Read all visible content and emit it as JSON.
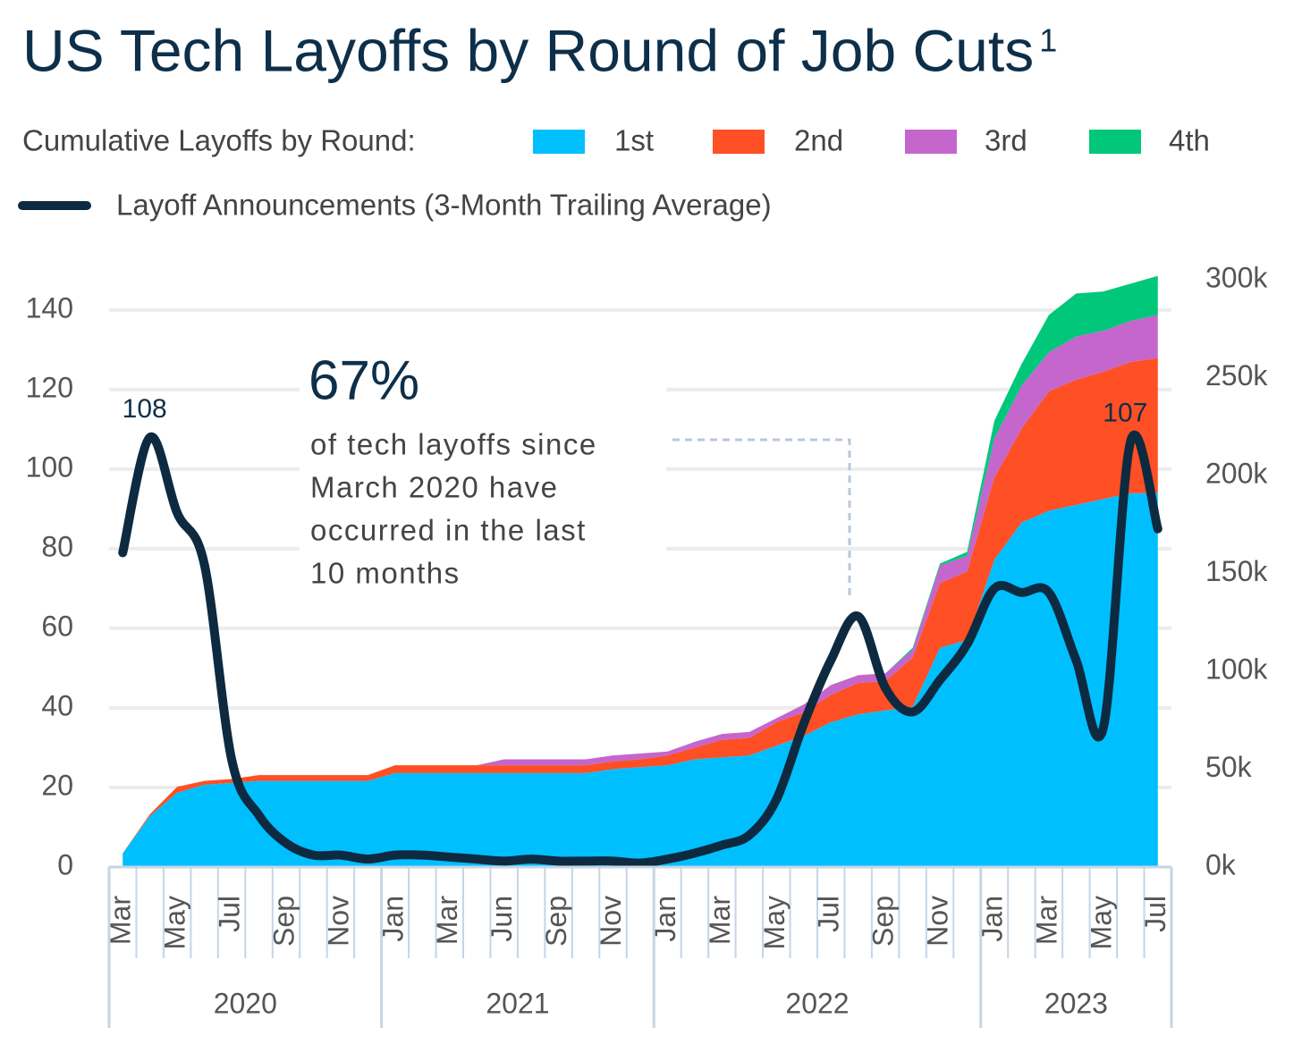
{
  "chart_data": {
    "type": "area",
    "title": "US Tech Layoffs by Round of Job Cuts",
    "title_footnote": "1",
    "legend_label": "Cumulative Layoffs by Round:",
    "annotation": {
      "headline": "67%",
      "lines": [
        "of tech layoffs since",
        "March 2020 have",
        "occurred in the last",
        "10 months"
      ]
    },
    "categories": [
      "Mar",
      null,
      "May",
      null,
      "Jul",
      null,
      "Sep",
      null,
      "Nov",
      null,
      "Jan",
      null,
      "Mar",
      null,
      "Jun",
      null,
      "Sep",
      null,
      "Nov",
      null,
      "Jan",
      null,
      "Mar",
      null,
      "May",
      null,
      "Jul",
      null,
      "Sep",
      null,
      "Nov",
      null,
      "Jan",
      null,
      "Mar",
      null,
      "May",
      null,
      "Jul"
    ],
    "category_groups": [
      {
        "label": "2020",
        "span": 10
      },
      {
        "label": "2021",
        "span": 10
      },
      {
        "label": "2022",
        "span": 12
      },
      {
        "label": "2023",
        "span": 7
      }
    ],
    "series": [
      {
        "name": "1st",
        "color": "#00bfff",
        "axis": "y2",
        "values": [
          7,
          26,
          38,
          42,
          43,
          44,
          44,
          44,
          44,
          44,
          48,
          48,
          48,
          48,
          48,
          48,
          48,
          48,
          50,
          51,
          52,
          55,
          56,
          57,
          62,
          67,
          74,
          78,
          80,
          82,
          112,
          116,
          157,
          176,
          182,
          185,
          188,
          191,
          191
        ]
      },
      {
        "name": "2nd",
        "color": "#ff4f24",
        "axis": "y2",
        "values": [
          0,
          1,
          3,
          2,
          2,
          3,
          3,
          3,
          3,
          3,
          4,
          4,
          4,
          4,
          4,
          4,
          4,
          4,
          4,
          4,
          5,
          6,
          9,
          9,
          12,
          12,
          14,
          16,
          15,
          25,
          33,
          35,
          42,
          48,
          61,
          64,
          65,
          67,
          69
        ]
      },
      {
        "name": "3rd",
        "color": "#c466cc",
        "axis": "y2",
        "values": [
          0,
          0,
          0,
          0,
          0,
          0,
          0,
          0,
          0,
          0,
          0,
          0,
          0,
          0,
          3,
          3,
          3,
          3,
          3,
          3,
          2,
          3,
          3,
          3,
          2,
          4,
          5,
          4,
          4,
          4,
          9,
          8,
          20,
          22,
          20,
          22,
          21,
          21,
          22
        ]
      },
      {
        "name": "4th",
        "color": "#00c77a",
        "axis": "y2",
        "values": [
          0,
          0,
          0,
          0,
          0,
          0,
          0,
          0,
          0,
          0,
          0,
          0,
          0,
          0,
          0,
          0,
          0,
          0,
          0,
          0,
          0,
          0,
          0,
          0,
          0,
          0,
          0,
          0,
          0,
          1,
          1,
          2,
          9,
          11,
          19,
          22,
          20,
          19,
          20
        ]
      },
      {
        "name": "Layoff Announcements (3-Month Trailing Average)",
        "color": "#0d2a40",
        "type": "line",
        "values": [
          79,
          108,
          89,
          76,
          27,
          13,
          6,
          3,
          3,
          2,
          3,
          3,
          2.5,
          2,
          1.5,
          2,
          1.5,
          1.5,
          1.5,
          1,
          2,
          3.5,
          5.5,
          8,
          17,
          36,
          52,
          63,
          45,
          39,
          47,
          56,
          70,
          69,
          69,
          52,
          35,
          107,
          85
        ],
        "value_labels": [
          null,
          "108",
          null,
          null,
          null,
          null,
          null,
          null,
          null,
          null,
          null,
          null,
          null,
          null,
          null,
          null,
          null,
          null,
          null,
          null,
          null,
          null,
          null,
          null,
          null,
          null,
          null,
          null,
          null,
          null,
          null,
          null,
          null,
          null,
          null,
          null,
          null,
          "107",
          null
        ]
      }
    ],
    "ylim": [
      0,
      147.6
    ],
    "yticks": [
      0,
      20,
      40,
      60,
      80,
      100,
      120,
      140
    ],
    "y2lim": [
      0,
      300
    ],
    "y2ticks": [
      {
        "value": 0,
        "label": "0k"
      },
      {
        "value": 50,
        "label": "50k"
      },
      {
        "value": 100,
        "label": "100k"
      },
      {
        "value": 150,
        "label": "150k"
      },
      {
        "value": 200,
        "label": "200k"
      },
      {
        "value": 250,
        "label": "250k"
      },
      {
        "value": 300,
        "label": "300k"
      }
    ],
    "grid": true
  }
}
